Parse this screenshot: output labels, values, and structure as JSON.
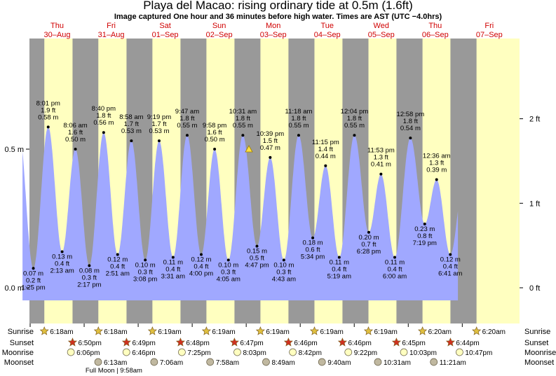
{
  "page": {
    "title": "Playa del Macao: rising  ordinary tide at 0.5m (1.6ft)",
    "subtitle": "Image captured One hour and 36 minutes before high water. Times are AST (UTC −4.0hrs)"
  },
  "colors": {
    "day": "#ffffc0",
    "night": "#999999",
    "tide_fill": "#a0a8ff",
    "date_label": "#d00000",
    "sunrise_star": "#e0c040",
    "sunset_star": "#d03020",
    "moonrise": "#ffffc0",
    "moonset": "#c0b8a0",
    "current_marker": "#ffe040"
  },
  "days": [
    {
      "dow": "Thu",
      "date": "30–Aug"
    },
    {
      "dow": "Fri",
      "date": "31–Aug"
    },
    {
      "dow": "Sat",
      "date": "01–Sep"
    },
    {
      "dow": "Sun",
      "date": "02–Sep"
    },
    {
      "dow": "Mon",
      "date": "03–Sep"
    },
    {
      "dow": "Tue",
      "date": "04–Sep"
    },
    {
      "dow": "Wed",
      "date": "05–Sep"
    },
    {
      "dow": "Thu",
      "date": "06–Sep"
    },
    {
      "dow": "Fri",
      "date": "07–Sep"
    }
  ],
  "sun": {
    "sunrise": [
      "6:18am",
      "6:18am",
      "6:19am",
      "6:19am",
      "6:19am",
      "6:19am",
      "6:19am",
      "6:20am",
      "6:20am"
    ],
    "sunset": [
      "6:50pm",
      "6:49pm",
      "6:48pm",
      "6:47pm",
      "6:46pm",
      "6:46pm",
      "6:45pm",
      "6:44pm"
    ]
  },
  "moon": {
    "moonrise": [
      "6:06pm",
      "6:46pm",
      "7:25pm",
      "8:03pm",
      "8:42pm",
      "9:22pm",
      "10:03pm",
      "10:47pm"
    ],
    "moonset": [
      "6:13am",
      "7:06am",
      "7:58am",
      "8:49am",
      "9:40am",
      "10:31am",
      "11:21am"
    ],
    "phase_note": "Full Moon | 9:58am"
  },
  "row_labels": {
    "sunrise": "Sunrise",
    "sunset": "Sunset",
    "moonrise": "Moonrise",
    "moonset": "Moonset"
  },
  "chart_data": {
    "type": "area",
    "title": "Playa del Macao: rising  ordinary tide at 0.5m (1.6ft)",
    "subtitle": "Image captured One hour and 36 minutes before high water. Times are AST (UTC −4.0hrs)",
    "x_unit": "days from Thu 30-Aug 00:00 (AST)",
    "xlim": [
      -0.4,
      8.5
    ],
    "ylim_m": [
      -0.1,
      0.76
    ],
    "left_axis": {
      "unit": "m",
      "ticks": [
        0.0,
        0.5
      ],
      "tick_labels": [
        "0.0 m",
        "0.5 m"
      ]
    },
    "right_axis": {
      "unit": "ft",
      "ticks": [
        0,
        1,
        2
      ],
      "tick_labels": [
        "0 ft",
        "1 ft",
        "2 ft"
      ]
    },
    "current_marker": {
      "day": 4.05,
      "height_m": 0.5
    },
    "extremes": [
      {
        "day": 0.059,
        "time": "1:25 pm",
        "ft": "0.2 ft",
        "m": 0.07,
        "type": "low"
      },
      {
        "day": 0.334,
        "time": "8:01 pm",
        "ft": "1.9 ft",
        "m": 0.58,
        "type": "high"
      },
      {
        "day": 0.592,
        "time": "2:13 am",
        "ft": "0.4 ft",
        "m": 0.13,
        "type": "low"
      },
      {
        "day": 0.838,
        "time": "8:06 am",
        "ft": "1.6 ft",
        "m": 0.5,
        "type": "high"
      },
      {
        "day": 1.095,
        "time": "2:17 pm",
        "ft": "0.3 ft",
        "m": 0.08,
        "type": "low"
      },
      {
        "day": 1.361,
        "time": "8:40 pm",
        "ft": "1.8 ft",
        "m": 0.56,
        "type": "high"
      },
      {
        "day": 1.619,
        "time": "2:51 am",
        "ft": "0.4 ft",
        "m": 0.12,
        "type": "low"
      },
      {
        "day": 1.874,
        "time": "8:58 am",
        "ft": "1.7 ft",
        "m": 0.53,
        "type": "high"
      },
      {
        "day": 2.131,
        "time": "3:08 pm",
        "ft": "0.3 ft",
        "m": 0.1,
        "type": "low"
      },
      {
        "day": 2.388,
        "time": "9:19 pm",
        "ft": "1.7 ft",
        "m": 0.53,
        "type": "high"
      },
      {
        "day": 2.646,
        "time": "3:31 am",
        "ft": "0.4 ft",
        "m": 0.11,
        "type": "low"
      },
      {
        "day": 2.907,
        "time": "9:47 am",
        "ft": "1.8 ft",
        "m": 0.55,
        "type": "high"
      },
      {
        "day": 3.167,
        "time": "4:00 pm",
        "ft": "0.4 ft",
        "m": 0.12,
        "type": "low"
      },
      {
        "day": 3.415,
        "time": "9:58 pm",
        "ft": "1.6 ft",
        "m": 0.5,
        "type": "high"
      },
      {
        "day": 3.67,
        "time": "4:05 am",
        "ft": "0.3 ft",
        "m": 0.1,
        "type": "low"
      },
      {
        "day": 3.938,
        "time": "10:31 am",
        "ft": "1.8 ft",
        "m": 0.55,
        "type": "high"
      },
      {
        "day": 4.199,
        "time": "4:47 pm",
        "ft": "0.5 ft",
        "m": 0.15,
        "type": "low"
      },
      {
        "day": 4.444,
        "time": "10:39 pm",
        "ft": "1.5 ft",
        "m": 0.47,
        "type": "high"
      },
      {
        "day": 4.697,
        "time": "4:43 am",
        "ft": "0.3 ft",
        "m": 0.1,
        "type": "low"
      },
      {
        "day": 4.971,
        "time": "11:18 am",
        "ft": "1.8 ft",
        "m": 0.55,
        "type": "high"
      },
      {
        "day": 5.232,
        "time": "5:34 pm",
        "ft": "0.6 ft",
        "m": 0.18,
        "type": "low"
      },
      {
        "day": 5.469,
        "time": "11:15 pm",
        "ft": "1.4 ft",
        "m": 0.44,
        "type": "high"
      },
      {
        "day": 5.722,
        "time": "5:19 am",
        "ft": "0.4 ft",
        "m": 0.11,
        "type": "low"
      },
      {
        "day": 6.003,
        "time": "12:04 pm",
        "ft": "1.8 ft",
        "m": 0.55,
        "type": "high"
      },
      {
        "day": 6.269,
        "time": "6:28 pm",
        "ft": "0.7 ft",
        "m": 0.2,
        "type": "low"
      },
      {
        "day": 6.495,
        "time": "11:53 pm",
        "ft": "1.3 ft",
        "m": 0.41,
        "type": "high"
      },
      {
        "day": 6.75,
        "time": "6:00 am",
        "ft": "0.4 ft",
        "m": 0.11,
        "type": "low"
      },
      {
        "day": 7.04,
        "time": "12:58 pm",
        "ft": "1.8 ft",
        "m": 0.54,
        "type": "high"
      },
      {
        "day": 7.305,
        "time": "7:19 pm",
        "ft": "0.8 ft",
        "m": 0.23,
        "type": "low"
      },
      {
        "day": 7.525,
        "time": "12:36 am",
        "ft": "1.3 ft",
        "m": 0.39,
        "type": "high"
      },
      {
        "day": 7.779,
        "time": "6:41 am",
        "ft": "0.4 ft",
        "m": 0.12,
        "type": "low"
      }
    ]
  }
}
